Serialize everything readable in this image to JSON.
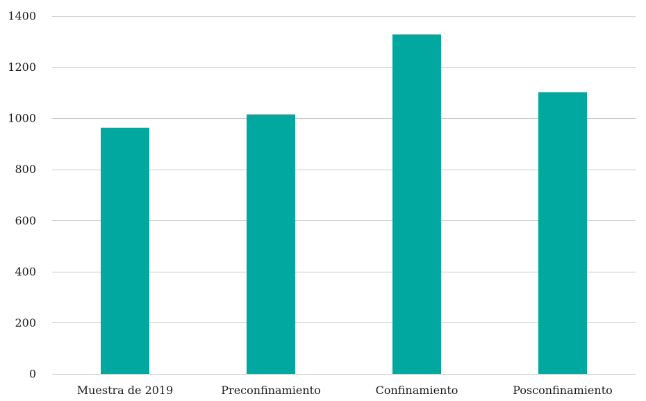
{
  "chart_data": {
    "type": "bar",
    "categories": [
      "Muestra de 2019",
      "Preconfinamiento",
      "Confinamiento",
      "Posconfinamiento"
    ],
    "values": [
      963,
      1015,
      1328,
      1102
    ],
    "title": "",
    "xlabel": "",
    "ylabel": "",
    "ylim": [
      0,
      1400
    ],
    "yticks": [
      0,
      200,
      400,
      600,
      800,
      1000,
      1200,
      1400
    ],
    "grid": true,
    "legend": "none",
    "bar_color": "#00a89f"
  }
}
